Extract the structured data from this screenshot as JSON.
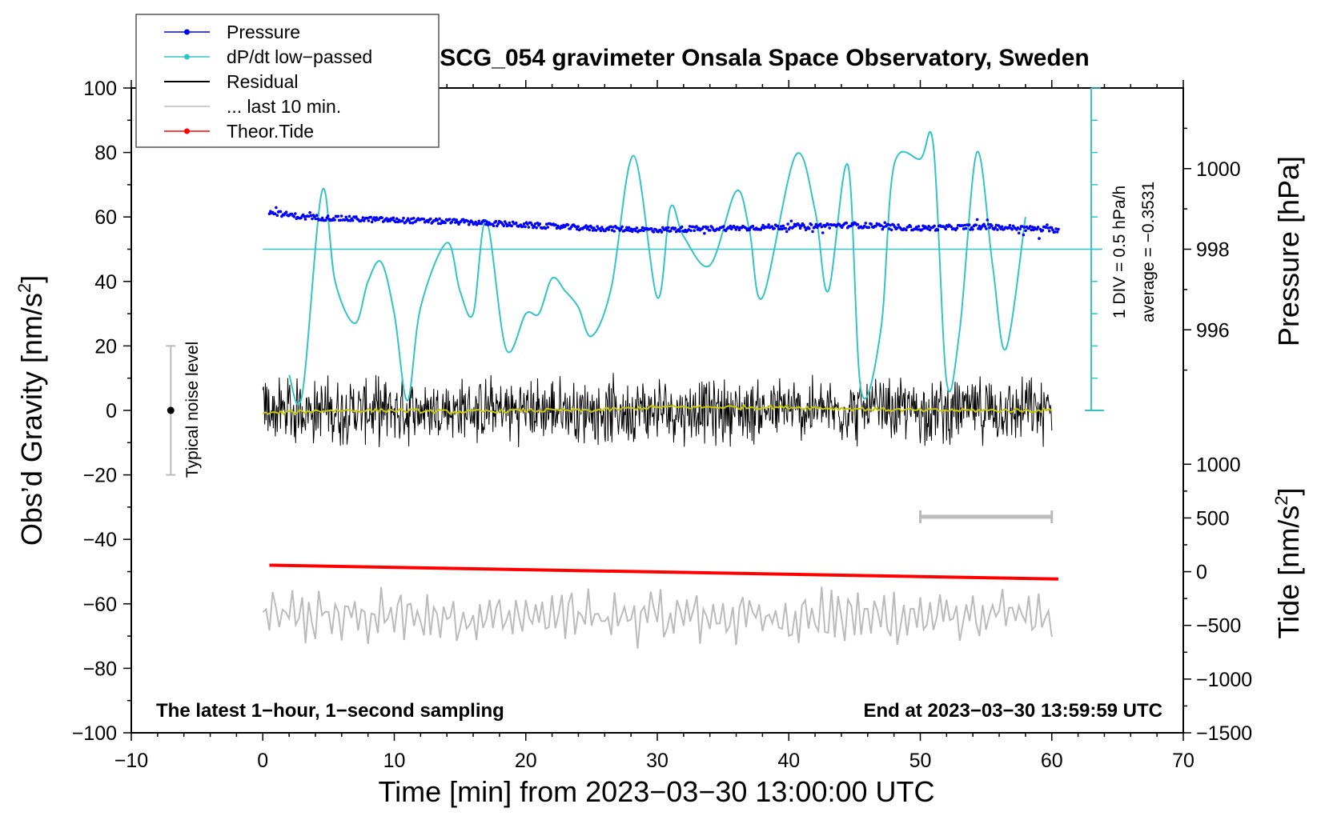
{
  "chart_data": {
    "type": "line",
    "title": "SCG_054 gravimeter Onsala Space Observatory, Sweden",
    "xlabel": "Time [min] from 2023−03−30 13:00:00 UTC",
    "ylabel_left": "Obs’d Gravity [nm/s",
    "ylabel_left_sup": "2",
    "ylabel_left_close": "]",
    "ylabel_right_pressure": "Pressure [hPa]",
    "ylabel_right_tide": "Tide [nm/s",
    "ylabel_right_tide_sup": "2",
    "ylabel_right_tide_close": "]",
    "xlim": [
      -10,
      70
    ],
    "ylim": [
      -100,
      100
    ],
    "x_ticks": [
      -10,
      0,
      10,
      20,
      30,
      40,
      50,
      60,
      70
    ],
    "x_tick_labels": [
      "−10",
      "0",
      "10",
      "20",
      "30",
      "40",
      "50",
      "60",
      "70"
    ],
    "y_ticks": [
      100,
      80,
      60,
      40,
      20,
      0,
      -20,
      -40,
      -60,
      -80,
      -100
    ],
    "y_tick_labels": [
      "100",
      "80",
      "60",
      "40",
      "20",
      "0",
      "−20",
      "−40",
      "−60",
      "−80",
      "−100"
    ],
    "pressure_axis": {
      "ticks": [
        1000,
        998,
        996
      ],
      "tick_labels": [
        "1000",
        "998",
        "996"
      ],
      "gravity_equiv": [
        [
          1000,
          75
        ],
        [
          998,
          50
        ],
        [
          996,
          25
        ]
      ]
    },
    "tide_axis": {
      "ticks": [
        1000,
        500,
        0,
        -500,
        -1000,
        -1500
      ],
      "tick_labels": [
        "1000",
        "500",
        "0",
        "−500",
        "−1000",
        "−1500"
      ],
      "gravity_equiv": [
        [
          1000,
          -16.7
        ],
        [
          -1500,
          -100
        ]
      ]
    },
    "dpdt_scale": {
      "div_label": "1 DIV = 0.5 hPa/h",
      "average_label": "average = −0.3531",
      "x_position_min": 63,
      "top_gravity": 100,
      "bottom_gravity": 0,
      "average_gravity": 50
    },
    "noise_indicator": {
      "label": "Typical noise level",
      "x_min": -7,
      "center": 0,
      "range": [
        -20,
        20
      ]
    },
    "last10_bar": {
      "x_range": [
        50,
        60
      ],
      "y": -33
    },
    "footer_left": "The latest 1−hour, 1−second sampling",
    "footer_right": "End at 2023−03−30 13:59:59 UTC",
    "legend": [
      {
        "label": "Pressure",
        "color": "#0000ff",
        "marker": true
      },
      {
        "label": "dP/dt low−passed",
        "color": "#33c4c4",
        "marker": true
      },
      {
        "label": "Residual",
        "color": "#000000",
        "marker": false
      },
      {
        "label": "... last 10 min.",
        "color": "#bbbbbb",
        "marker": false
      },
      {
        "label": "Theor.Tide",
        "color": "#ff0000",
        "marker": true
      }
    ],
    "series": [
      {
        "name": "Pressure",
        "color": "#0000ff",
        "x": [
          0.5,
          3,
          6,
          10,
          15,
          20,
          25,
          30,
          35,
          40,
          45,
          50,
          55,
          60.5
        ],
        "values": [
          61.5,
          60,
          59.5,
          59,
          58.5,
          57.5,
          56.5,
          56,
          56.5,
          57,
          57.5,
          56.5,
          57,
          56
        ]
      },
      {
        "name": "dP/dt low−passed",
        "color": "#33c4c4",
        "x": [
          2,
          3,
          4.5,
          5.5,
          7,
          8,
          9,
          10,
          11,
          12,
          14,
          15,
          16,
          17,
          18.5,
          20,
          21,
          22,
          23,
          24,
          25,
          26.5,
          28.2,
          30,
          31,
          32,
          34,
          36,
          37,
          38,
          40.5,
          42,
          43,
          44.5,
          45.5,
          47,
          48,
          50,
          51,
          52,
          53,
          54.3,
          55.5,
          56.5,
          58
        ],
        "values": [
          11,
          5,
          68,
          40,
          27,
          40,
          46,
          30,
          3,
          32,
          52,
          37,
          30,
          59,
          19,
          30,
          30,
          41,
          37,
          32,
          23,
          38,
          79,
          35,
          63,
          54,
          45,
          68,
          56,
          35,
          79,
          62,
          37,
          76,
          6,
          25,
          76,
          78,
          82,
          9,
          25,
          80,
          45,
          19,
          60
        ]
      },
      {
        "name": "Residual",
        "color": "#000000",
        "x": [
          0,
          60
        ],
        "values": [
          0,
          0
        ],
        "amplitude": 8
      },
      {
        "name": "Residual smoothed",
        "color": "#c8c800",
        "x": [
          0,
          5,
          10,
          15,
          20,
          25,
          30,
          35,
          40,
          45,
          50,
          55,
          60
        ],
        "values": [
          -1,
          0,
          0,
          -0.5,
          0,
          0,
          1,
          1,
          1,
          0.5,
          0,
          0,
          0
        ]
      },
      {
        "name": "... last 10 min.",
        "color": "#bbbbbb",
        "x": [
          0,
          60
        ],
        "values": [
          -64,
          -64
        ],
        "amplitude": 10
      },
      {
        "name": "Theor.Tide",
        "color": "#ff0000",
        "x": [
          0.5,
          60.5
        ],
        "values": [
          -48,
          -52.3
        ]
      }
    ]
  }
}
